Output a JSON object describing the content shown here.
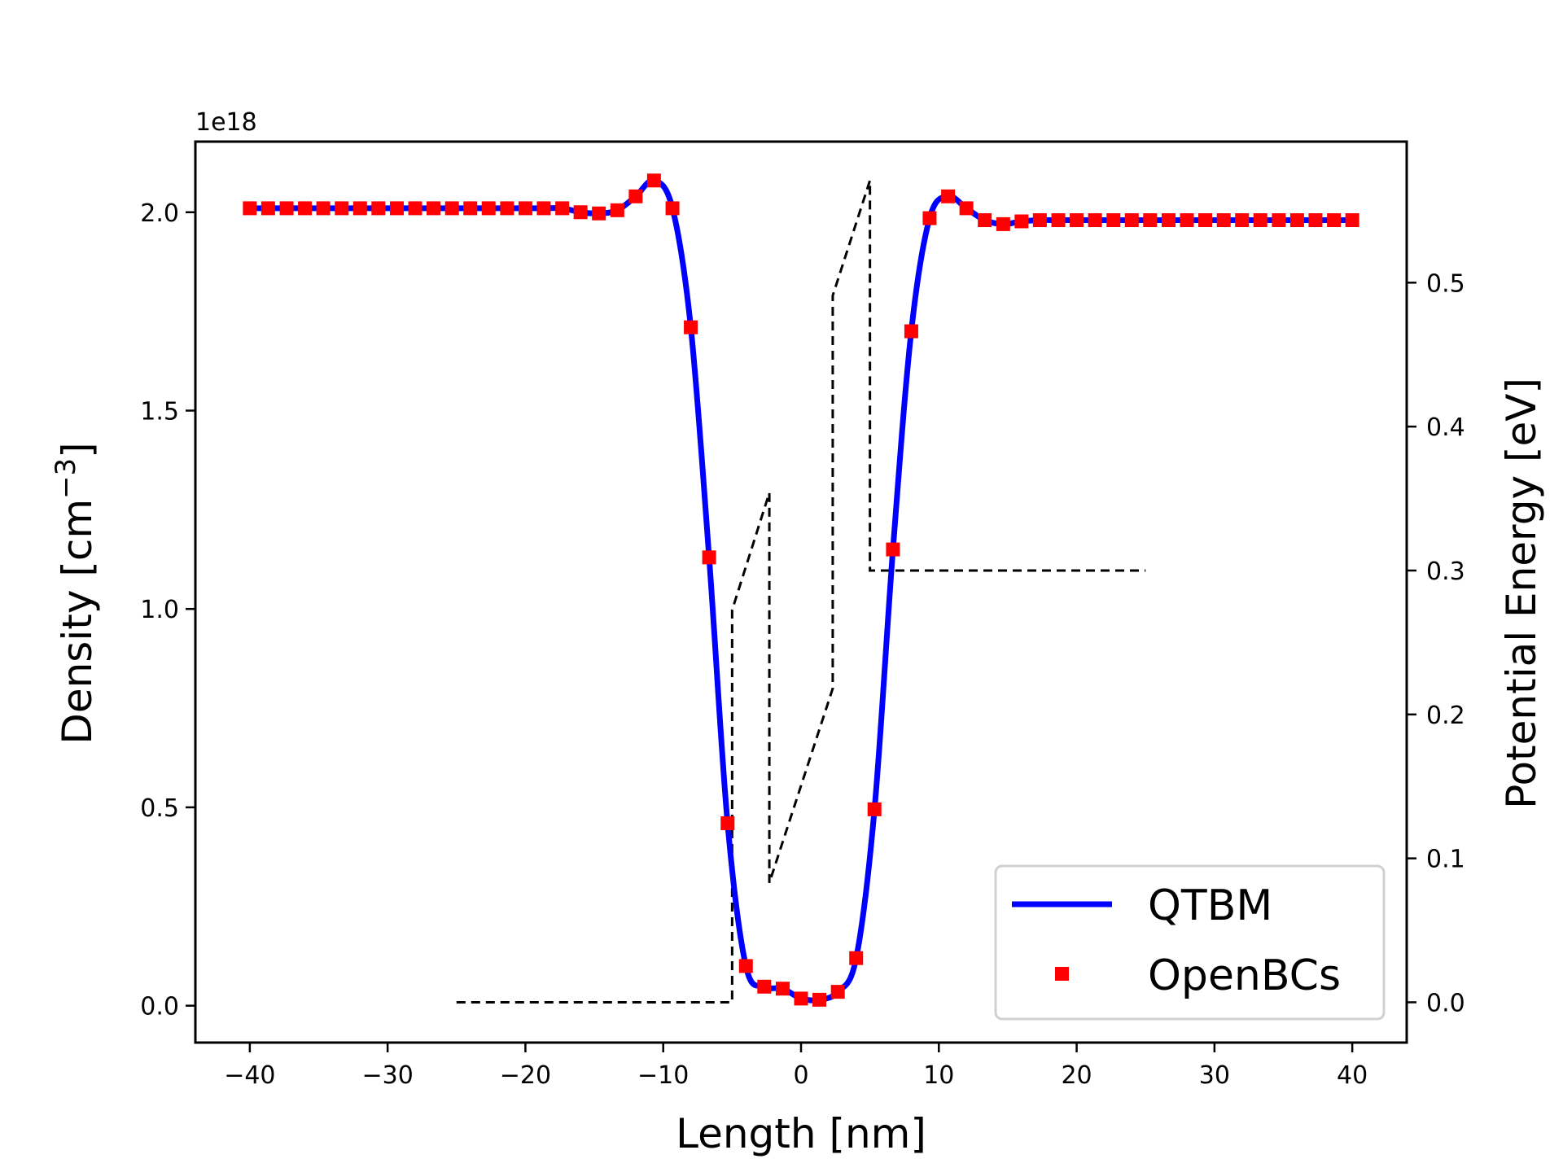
{
  "chart_data": {
    "type": "line",
    "xlabel": "Length [nm]",
    "ylabel": "Density [cm",
    "ylabel_sup": "−3",
    "ylabel_end": "]",
    "y_offset_label": "1e18",
    "y2label": "Potential Energy [eV]",
    "xlim": [
      -43.95,
      43.95
    ],
    "ylim": [
      -0.093,
      2.178
    ],
    "y2lim": [
      -0.028,
      0.598
    ],
    "xticks": [
      -40,
      -30,
      -20,
      -10,
      0,
      10,
      20,
      30,
      40
    ],
    "xtick_labels": [
      "−40",
      "−30",
      "−20",
      "−10",
      "0",
      "10",
      "20",
      "30",
      "40"
    ],
    "yticks": [
      0.0,
      0.5,
      1.0,
      1.5,
      2.0
    ],
    "ytick_labels": [
      "0.0",
      "0.5",
      "1.0",
      "1.5",
      "2.0"
    ],
    "y2ticks": [
      0.0,
      0.1,
      0.2,
      0.3,
      0.4,
      0.5
    ],
    "y2tick_labels": [
      "0.0",
      "0.1",
      "0.2",
      "0.3",
      "0.4",
      "0.5"
    ],
    "grid": false,
    "legend_position": "lower-right",
    "x": [
      -40,
      -38.67,
      -37.33,
      -36,
      -34.67,
      -33.33,
      -32,
      -30.67,
      -29.33,
      -28,
      -26.67,
      -25.33,
      -24,
      -22.67,
      -21.33,
      -20,
      -18.67,
      -17.33,
      -16,
      -14.67,
      -13.33,
      -12,
      -10.67,
      -9.33,
      -8,
      -6.67,
      -5.33,
      -4,
      -2.67,
      -1.33,
      0,
      1.33,
      2.67,
      4,
      5.33,
      6.67,
      8,
      9.33,
      10.67,
      12,
      13.33,
      14.67,
      16,
      17.33,
      18.67,
      20,
      21.33,
      22.67,
      24,
      25.33,
      26.67,
      28,
      29.33,
      30.67,
      32,
      33.33,
      34.67,
      36,
      37.33,
      38.67,
      40
    ],
    "series": [
      {
        "name": "QTBM",
        "axis": "left",
        "style": "solid",
        "color": "#0000ff",
        "values": [
          2.01,
          2.01,
          2.01,
          2.01,
          2.01,
          2.01,
          2.01,
          2.01,
          2.01,
          2.01,
          2.01,
          2.01,
          2.01,
          2.01,
          2.01,
          2.01,
          2.01,
          2.01,
          2.0,
          1.997,
          2.005,
          2.04,
          2.08,
          2.01,
          1.71,
          1.13,
          0.46,
          0.1,
          0.048,
          0.043,
          0.018,
          0.015,
          0.035,
          0.12,
          0.495,
          1.15,
          1.7,
          1.985,
          2.04,
          2.01,
          1.98,
          1.97,
          1.977,
          1.98,
          1.98,
          1.98,
          1.98,
          1.98,
          1.98,
          1.98,
          1.98,
          1.98,
          1.98,
          1.98,
          1.98,
          1.98,
          1.98,
          1.98,
          1.98,
          1.98,
          1.98
        ]
      },
      {
        "name": "OpenBCs",
        "axis": "left",
        "style": "square-markers",
        "color": "#ff0000",
        "values": [
          2.01,
          2.01,
          2.01,
          2.01,
          2.01,
          2.01,
          2.01,
          2.01,
          2.01,
          2.01,
          2.01,
          2.01,
          2.01,
          2.01,
          2.01,
          2.01,
          2.01,
          2.01,
          2.0,
          1.997,
          2.005,
          2.04,
          2.08,
          2.01,
          1.71,
          1.13,
          0.46,
          0.1,
          0.048,
          0.043,
          0.018,
          0.015,
          0.035,
          0.12,
          0.495,
          1.15,
          1.7,
          1.985,
          2.04,
          2.01,
          1.98,
          1.97,
          1.977,
          1.98,
          1.98,
          1.98,
          1.98,
          1.98,
          1.98,
          1.98,
          1.98,
          1.98,
          1.98,
          1.98,
          1.98,
          1.98,
          1.98,
          1.98,
          1.98,
          1.98,
          1.98
        ]
      }
    ],
    "potential": {
      "axis": "right",
      "style": "dashed",
      "color": "#000000",
      "x": [
        -25,
        -5,
        -5,
        -2.3,
        -2.3,
        2.3,
        2.3,
        5,
        5,
        25
      ],
      "y": [
        0,
        0,
        0.2725,
        0.354,
        0.083,
        0.218,
        0.491,
        0.571,
        0.3,
        0.3
      ]
    }
  }
}
